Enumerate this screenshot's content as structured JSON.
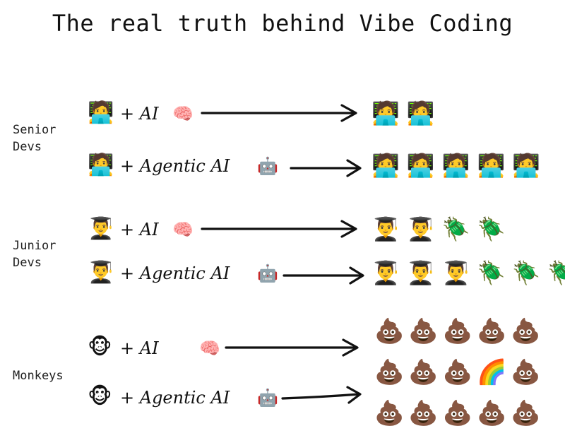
{
  "title": "The real truth behind Vibe Coding",
  "groups": [
    {
      "label": "Senior\nDevs",
      "rows": [
        {
          "who": "🧑‍💻",
          "formula": "+ AI",
          "ai_icon": "🧠",
          "outcomes": "🧑‍💻🧑‍💻"
        },
        {
          "who": "🧑‍💻",
          "formula": "+ Agentic AI",
          "ai_icon": "🤖",
          "outcomes": "🧑‍💻🧑‍💻🧑‍💻🧑‍💻🧑‍💻"
        }
      ]
    },
    {
      "label": "Junior\nDevs",
      "rows": [
        {
          "who": "👨‍🎓",
          "formula": "+ AI",
          "ai_icon": "🧠",
          "outcomes": "👨‍🎓👨‍🎓🪲🪲"
        },
        {
          "who": "👨‍🎓",
          "formula": "+ Agentic AI",
          "ai_icon": "🤖",
          "outcomes": "👨‍🎓👨‍🎓👨‍🎓🪲🪲🪲"
        }
      ]
    },
    {
      "label": "Monkeys",
      "rows": [
        {
          "who": "🐵",
          "formula": "+ AI",
          "ai_icon": "🧠"
        },
        {
          "who": "🐵",
          "formula": "+ Agentic AI",
          "ai_icon": "🤖"
        }
      ],
      "outcomes_grid": [
        "💩💩💩💩💩",
        "💩💩💩🌈💩",
        "💩💩💩💩💩"
      ]
    }
  ]
}
